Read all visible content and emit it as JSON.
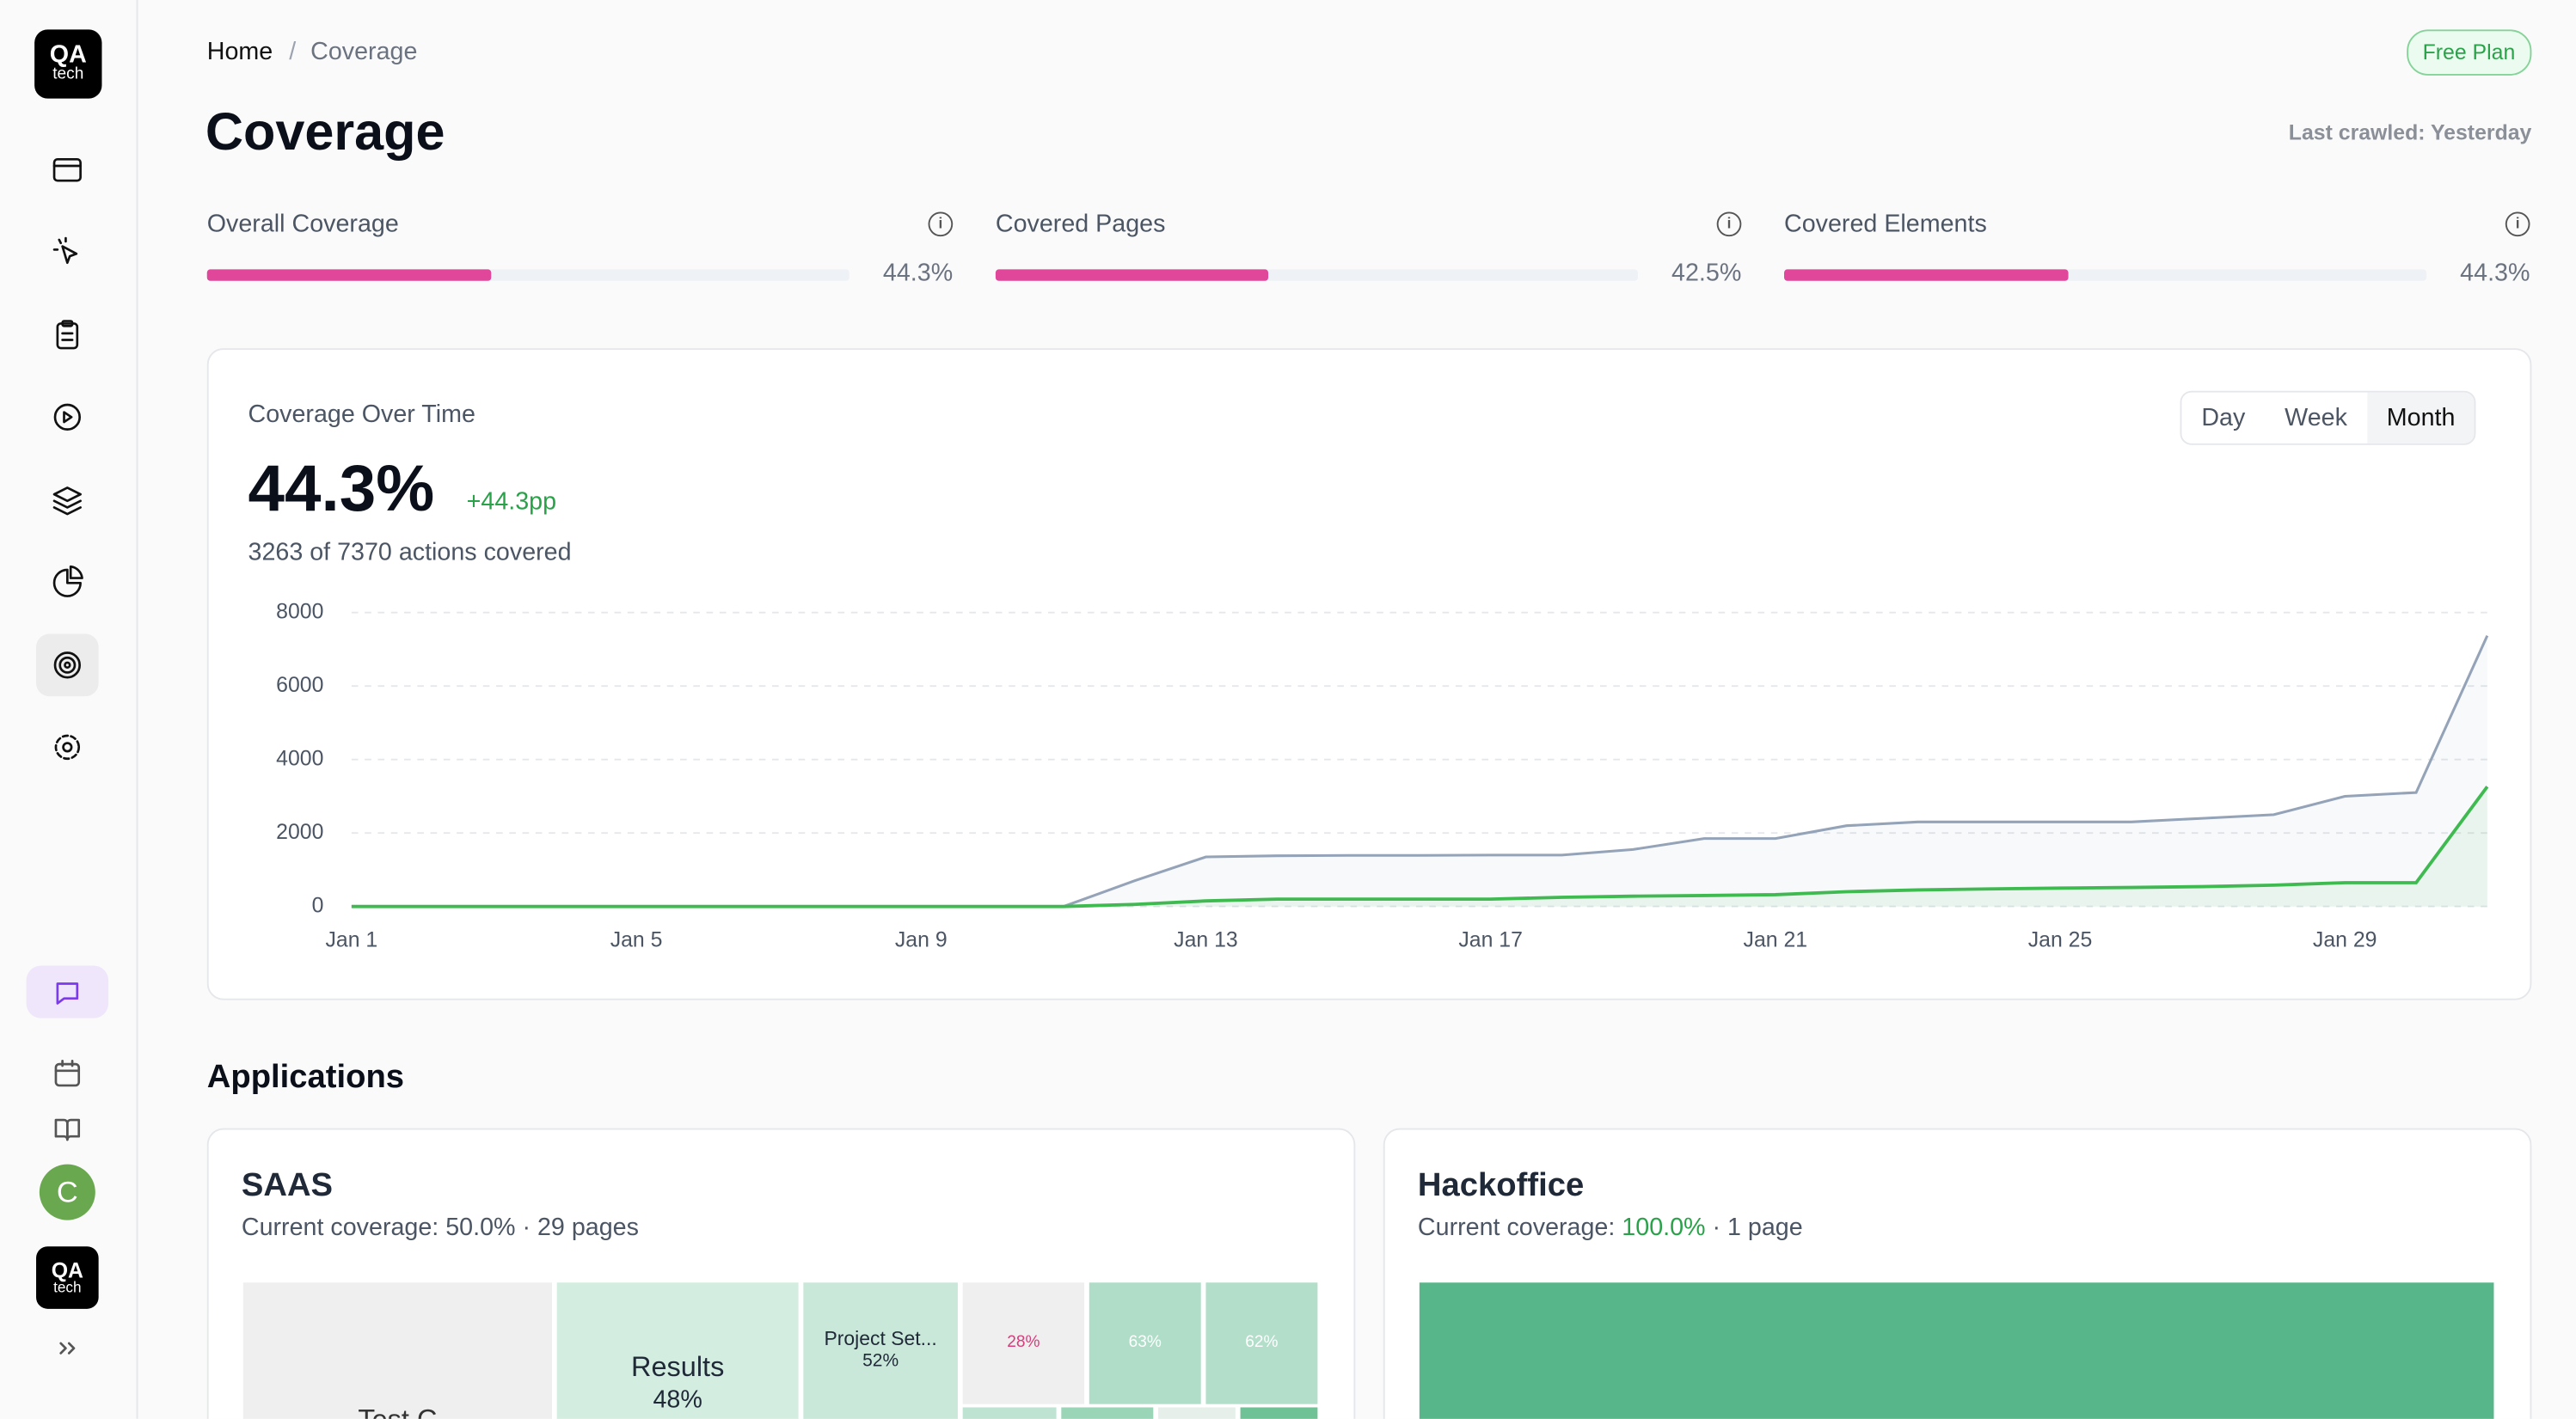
{
  "sidebar": {
    "logo": [
      "QA",
      "tech"
    ],
    "avatar": "C"
  },
  "breadcrumb": [
    "Home",
    "Coverage"
  ],
  "plan": "Free Plan",
  "title": "Coverage",
  "last_crawled": "Last crawled: Yesterday",
  "metrics": [
    {
      "label": "Overall Coverage",
      "value": 44.3,
      "value_label": "44.3%"
    },
    {
      "label": "Covered Pages",
      "value": 42.5,
      "value_label": "42.5%"
    },
    {
      "label": "Covered Elements",
      "value": 44.3,
      "value_label": "44.3%"
    }
  ],
  "coverage_card": {
    "title": "Coverage Over Time",
    "ranges": [
      "Day",
      "Week",
      "Month"
    ],
    "selected_range": 2,
    "headline": "44.3%",
    "change": "+44.3pp",
    "summary": "3263 of 7370 actions covered",
    "chart_data": {
      "type": "line",
      "categories": [
        "Jan 1",
        null,
        null,
        null,
        "Jan 5",
        null,
        null,
        null,
        "Jan 9",
        null,
        null,
        null,
        "Jan 13",
        null,
        null,
        null,
        "Jan 17",
        null,
        null,
        null,
        "Jan 21",
        null,
        null,
        null,
        "Jan 25",
        null,
        null,
        null,
        "Jan 29",
        null,
        null
      ],
      "series": [
        {
          "color": "#94a3b8",
          "values": [
            0,
            0,
            0,
            0,
            0,
            0,
            0,
            0,
            0,
            0,
            0,
            700,
            1350,
            1380,
            1390,
            1390,
            1400,
            1400,
            1550,
            1850,
            1850,
            2200,
            2300,
            2300,
            2300,
            2300,
            2400,
            2500,
            3000,
            3100,
            7370
          ]
        },
        {
          "color": "#3fba50",
          "values": [
            0,
            0,
            0,
            0,
            0,
            0,
            0,
            0,
            0,
            0,
            0,
            60,
            150,
            200,
            200,
            200,
            200,
            250,
            280,
            300,
            320,
            400,
            450,
            480,
            500,
            520,
            540,
            580,
            650,
            650,
            3263
          ]
        }
      ],
      "ylim": [
        0,
        8000
      ],
      "yticks": [
        0,
        2000,
        4000,
        6000,
        8000
      ],
      "grid": true
    }
  },
  "applications": {
    "title": "Applications",
    "items": [
      {
        "name": "SAAS",
        "coverage_prefix": "Current coverage: 50.0%",
        "coverage": "",
        "pages": "· 29 pages",
        "cells": [
          {
            "name": "Test C"
          },
          {
            "name": "Results",
            "value": 48,
            "value_label": "48%"
          },
          {
            "name": "Project Set...",
            "value": 52,
            "value_label": "52%"
          },
          {
            "value": 28,
            "value_label": "28%"
          },
          {
            "value": 63,
            "value_label": "63%"
          },
          {
            "value": 62,
            "value_label": "62%"
          }
        ]
      },
      {
        "name": "Hackoffice",
        "coverage_prefix": "Current coverage:",
        "coverage": "100.0%",
        "pages": "· 1 page",
        "cells": [
          {
            "value": 100
          }
        ]
      }
    ]
  }
}
